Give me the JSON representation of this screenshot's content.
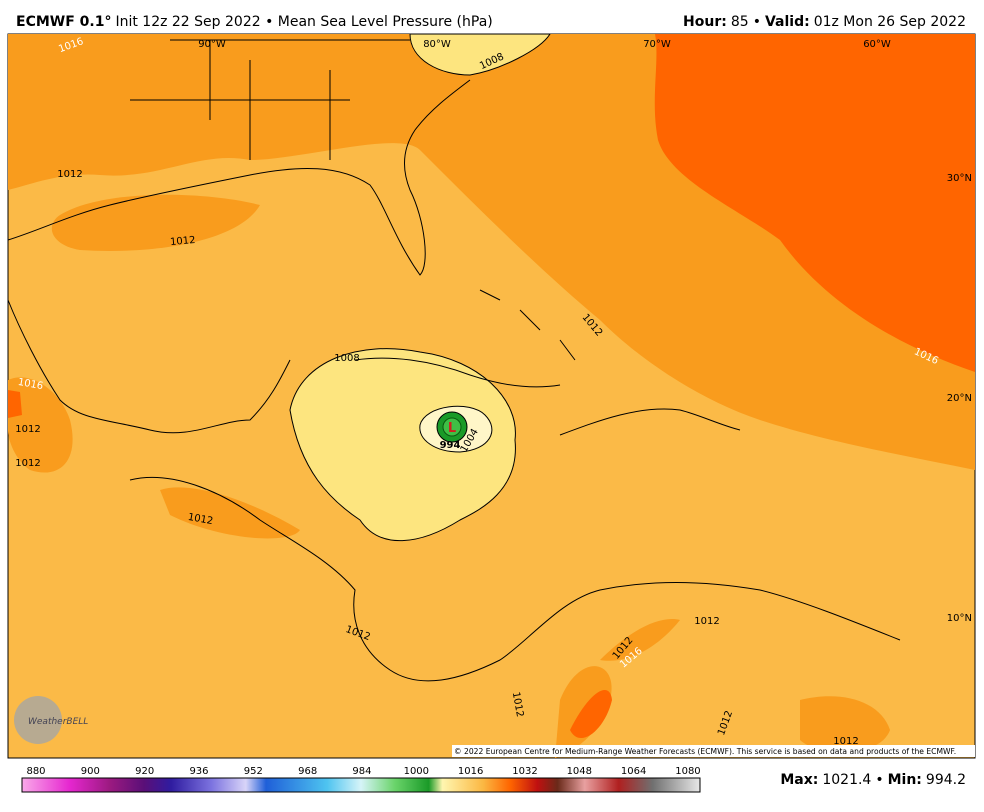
{
  "header": {
    "title_bold": "ECMWF 0.1°",
    "title_rest": "Init 12z 22 Sep 2022 • Mean Sea Level Pressure (hPa)",
    "hour_label": "Hour:",
    "hour": "85",
    "separator": "•",
    "valid_label": "Valid:",
    "valid": "01z Mon 26 Sep 2022"
  },
  "map": {
    "longitudes": [
      "90°W",
      "80°W",
      "70°W",
      "60°W"
    ],
    "latitudes": [
      "30°N",
      "20°N",
      "10°N"
    ],
    "contour_labels": [
      "1016",
      "1008",
      "1012",
      "1012",
      "1012",
      "1008",
      "1016",
      "1016",
      "1012",
      "1012",
      "994",
      "1004",
      "1012",
      "1012",
      "1012",
      "1012",
      "1016",
      "1012",
      "1012",
      "1012"
    ],
    "low": "L",
    "logo": "WeatherBELL",
    "copyright": "© 2022 European Centre for Medium-Range Weather Forecasts (ECMWF). This service is based on data and products of the ECMWF."
  },
  "colorbar": {
    "ticks": [
      "880",
      "900",
      "920",
      "936",
      "952",
      "968",
      "984",
      "1000",
      "1016",
      "1032",
      "1048",
      "1064",
      "1080"
    ]
  },
  "footer": {
    "max_label": "Max:",
    "max": "1021.4",
    "separator": "•",
    "min_label": "Min:",
    "min": "994.2"
  }
}
